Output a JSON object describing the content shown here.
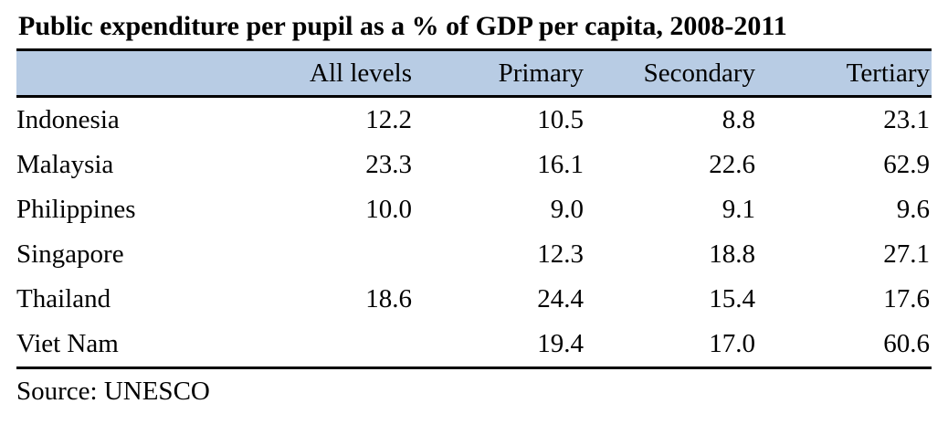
{
  "title": "Public expenditure per pupil as a % of GDP per capita, 2008-2011",
  "source": "Source: UNESCO",
  "colors": {
    "header_background": "#B8CCE4",
    "rule": "#000000",
    "text": "#000000",
    "page_background": "#FFFFFF"
  },
  "table": {
    "headers": [
      "All levels",
      "Primary",
      "Secondary",
      "Tertiary"
    ],
    "rows": [
      {
        "country": "Indonesia",
        "values": [
          "12.2",
          "10.5",
          "8.8",
          "23.1"
        ]
      },
      {
        "country": "Malaysia",
        "values": [
          "23.3",
          "16.1",
          "22.6",
          "62.9"
        ]
      },
      {
        "country": "Philippines",
        "values": [
          "10.0",
          "9.0",
          "9.1",
          "9.6"
        ]
      },
      {
        "country": "Singapore",
        "values": [
          "",
          "12.3",
          "18.8",
          "27.1"
        ]
      },
      {
        "country": "Thailand",
        "values": [
          "18.6",
          "24.4",
          "15.4",
          "17.6"
        ]
      },
      {
        "country": "Viet Nam",
        "values": [
          "",
          "19.4",
          "17.0",
          "60.6"
        ]
      }
    ]
  },
  "chart_data": {
    "type": "table",
    "title": "Public expenditure per pupil as a % of GDP per capita, 2008-2011",
    "columns": [
      "All levels",
      "Primary",
      "Secondary",
      "Tertiary"
    ],
    "row_labels": [
      "Indonesia",
      "Malaysia",
      "Philippines",
      "Singapore",
      "Thailand",
      "Viet Nam"
    ],
    "values": [
      [
        12.2,
        10.5,
        8.8,
        23.1
      ],
      [
        23.3,
        16.1,
        22.6,
        62.9
      ],
      [
        10.0,
        9.0,
        9.1,
        9.6
      ],
      [
        null,
        12.3,
        18.8,
        27.1
      ],
      [
        18.6,
        24.4,
        15.4,
        17.6
      ],
      [
        null,
        19.4,
        17.0,
        60.6
      ]
    ],
    "source": "Source: UNESCO",
    "layout": {
      "header_fill": "#B8CCE4",
      "rules": "thick black top, below header, and bottom",
      "numeric_alignment": "right",
      "label_alignment": "left"
    }
  }
}
